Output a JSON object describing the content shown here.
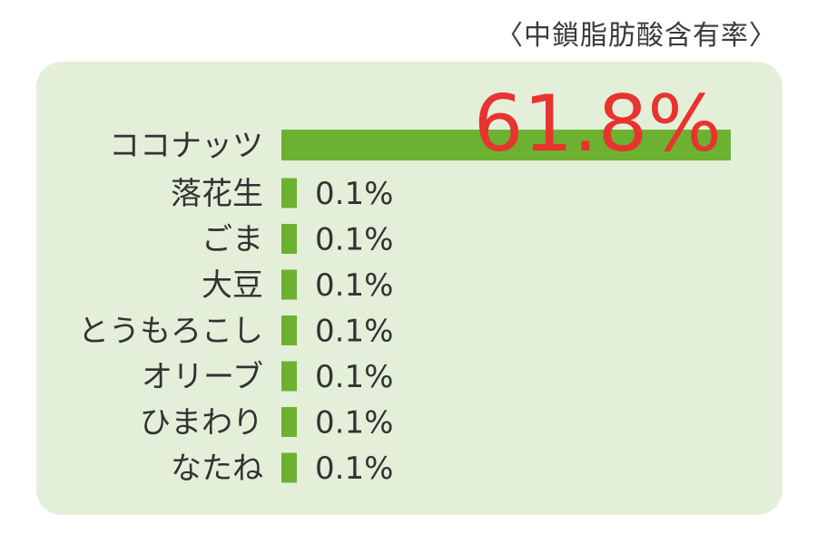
{
  "chart_data": {
    "type": "bar",
    "orientation": "horizontal",
    "title": "〈中鎖脂肪酸含有率〉",
    "categories": [
      "ココナッツ",
      "落花生",
      "ごま",
      "大豆",
      "とうもろこし",
      "オリーブ",
      "ひまわり",
      "なたね"
    ],
    "values": [
      61.8,
      0.1,
      0.1,
      0.1,
      0.1,
      0.1,
      0.1,
      0.1
    ],
    "value_labels": [
      "61.8%",
      "0.1%",
      "0.1%",
      "0.1%",
      "0.1%",
      "0.1%",
      "0.1%",
      "0.1%"
    ],
    "xlabel": "",
    "ylabel": "",
    "unit": "%",
    "grid": false,
    "legend": "none",
    "colors": {
      "bar": "#6db131",
      "highlight_value": "#e8332f",
      "panel": "#e3efd9",
      "text": "#333333"
    }
  }
}
